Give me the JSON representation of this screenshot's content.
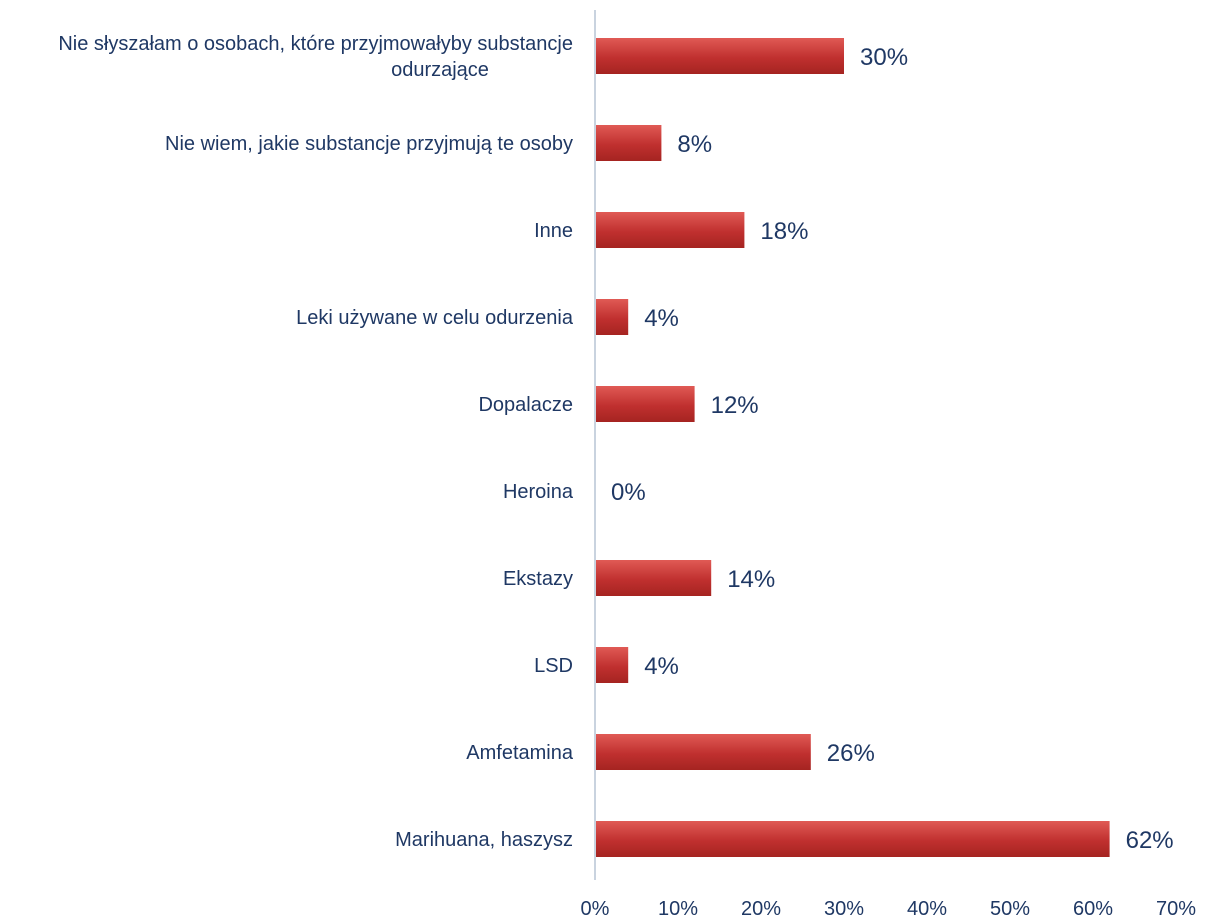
{
  "chart_data": {
    "type": "bar",
    "orientation": "horizontal",
    "categories": [
      "Nie słyszałam o osobach, które przyjmowałyby substancje odurzające",
      "Nie wiem, jakie substancje przyjmują te osoby",
      "Inne",
      "Leki używane w celu odurzenia",
      "Dopalacze",
      "Heroina",
      "Ekstazy",
      "LSD",
      "Amfetamina",
      "Marihuana, haszysz"
    ],
    "category_lines": [
      [
        "Nie słyszałam o osobach, które przyjmowałyby substancje",
        "odurzające"
      ],
      [
        "Nie wiem, jakie substancje przyjmują te osoby"
      ],
      [
        "Inne"
      ],
      [
        "Leki używane w celu odurzenia"
      ],
      [
        "Dopalacze"
      ],
      [
        "Heroina"
      ],
      [
        "Ekstazy"
      ],
      [
        "LSD"
      ],
      [
        "Amfetamina"
      ],
      [
        "Marihuana, haszysz"
      ]
    ],
    "values": [
      30,
      8,
      18,
      4,
      12,
      0,
      14,
      4,
      26,
      62
    ],
    "data_labels": [
      "30%",
      "8%",
      "18%",
      "4%",
      "12%",
      "0%",
      "14%",
      "4%",
      "26%",
      "62%"
    ],
    "title": "",
    "xlabel": "",
    "ylabel": "",
    "xlim": [
      0,
      70
    ],
    "ticks": [
      0,
      10,
      20,
      30,
      40,
      50,
      60,
      70
    ],
    "tick_labels": [
      "0%",
      "10%",
      "20%",
      "30%",
      "40%",
      "50%",
      "60%",
      "70%"
    ],
    "grid": false,
    "legend": "none",
    "colors": {
      "bar": "#c0302f",
      "bar_light": "#e05a55",
      "bar_dark": "#a52421",
      "text": "#1f3864",
      "axis": "#c9d3df"
    }
  }
}
